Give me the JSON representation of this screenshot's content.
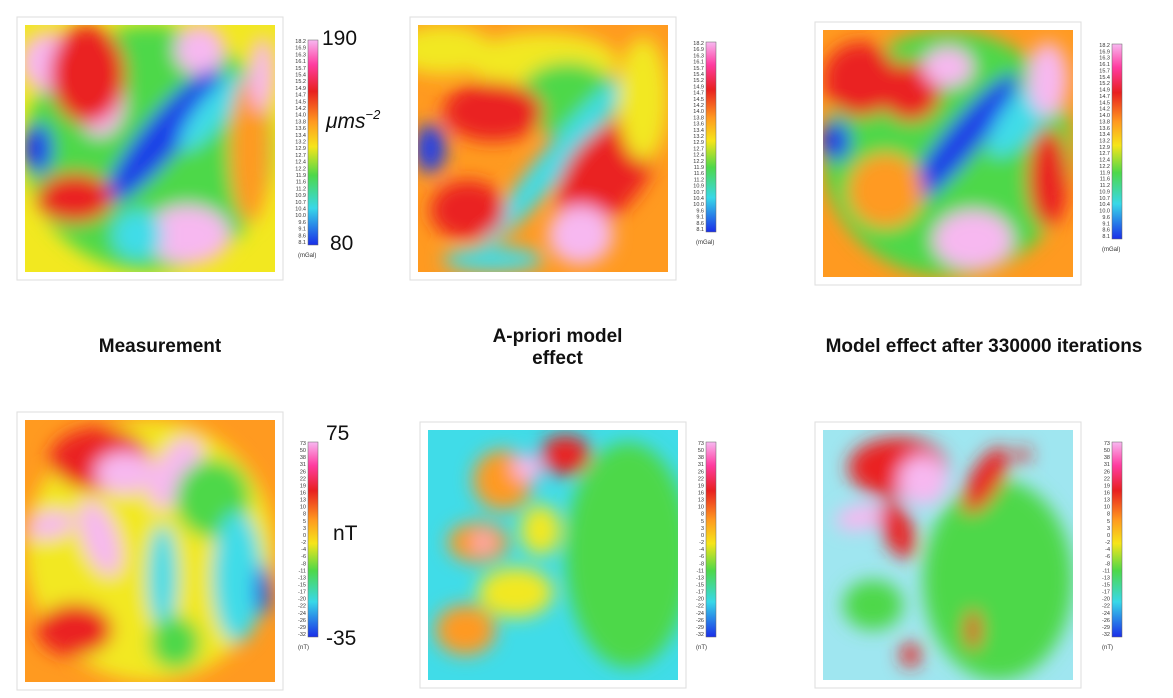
{
  "panels": [
    {
      "caption": "Measurement"
    },
    {
      "caption": "A-priori model effect"
    },
    {
      "caption": "Model effect after 330000 iterations"
    }
  ],
  "gravity_scale": {
    "max": "190",
    "unit_base": "μms",
    "unit_exponent": "−2",
    "min": "80",
    "bar_unit": "(mGal)",
    "ticks": [
      "18.2",
      "16.9",
      "16.3",
      "16.1",
      "15.7",
      "15.4",
      "15.2",
      "14.9",
      "14.7",
      "14.5",
      "14.2",
      "14.0",
      "13.8",
      "13.6",
      "13.4",
      "13.2",
      "12.9",
      "12.7",
      "12.4",
      "12.2",
      "11.9",
      "11.6",
      "11.2",
      "10.9",
      "10.7",
      "10.4",
      "10.0",
      "9.6",
      "9.1",
      "8.6",
      "8.1"
    ]
  },
  "magnetic_scale": {
    "max": "75",
    "unit": "nT",
    "min": "-35",
    "bar_unit": "(nT)",
    "ticks": [
      "73",
      "50",
      "38",
      "31",
      "26",
      "22",
      "19",
      "16",
      "13",
      "10",
      "8",
      "5",
      "3",
      "0",
      "-2",
      "-4",
      "-6",
      "-8",
      "-11",
      "-13",
      "-15",
      "-17",
      "-20",
      "-22",
      "-24",
      "-26",
      "-29",
      "-32"
    ]
  }
}
